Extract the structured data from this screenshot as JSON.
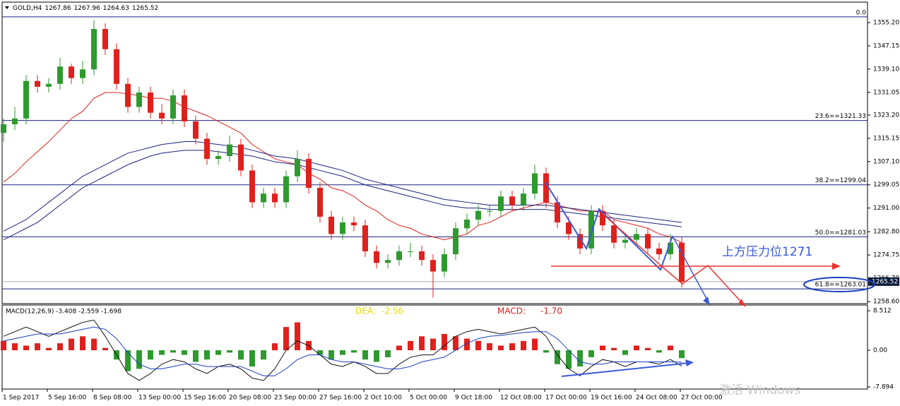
{
  "chart_data": [
    {
      "type": "candlestick",
      "title": "GOLD,H4",
      "header_ohlc": [
        1267.86,
        1267.96,
        1264.63,
        1265.52
      ],
      "categories": [
        "1 Sep 2017",
        null,
        null,
        null,
        "5 Sep 16:00",
        null,
        null,
        null,
        "8 Sep 08:00",
        null,
        null,
        null,
        "13 Sep 00:00",
        null,
        null,
        null,
        "15 Sep 16:00",
        null,
        null,
        null,
        "20 Sep 08:00",
        null,
        null,
        null,
        "23 Sep 00:00",
        null,
        null,
        null,
        "27 Sep 16:00",
        null,
        null,
        null,
        "2 Oct 10:00",
        null,
        null,
        null,
        "5 Oct 00:00",
        null,
        null,
        null,
        "9 Oct 18:00",
        null,
        null,
        null,
        "12 Oct 08:00",
        null,
        null,
        null,
        "17 Oct 00:00",
        null,
        null,
        null,
        "19 Oct 16:00",
        null,
        null,
        null,
        "24 Oct 08:00",
        null,
        null,
        null,
        "27 Oct 00:00"
      ],
      "open": [
        1317,
        1320,
        1322,
        1335,
        1333,
        1334,
        1340,
        1336,
        1339,
        1353,
        1346,
        1334,
        1326,
        1331,
        1324,
        1322,
        1330,
        1321,
        1315,
        1308,
        1309,
        1313,
        1304,
        1293,
        1296,
        1293,
        1302,
        1308,
        1298,
        1288,
        1282,
        1286,
        1285,
        1276,
        1272,
        1273,
        1276,
        1276,
        1273,
        1269,
        1275,
        1284,
        1287,
        1290,
        1290,
        1295,
        1292,
        1296,
        1303,
        1293,
        1286,
        1282,
        1277,
        1290,
        1285,
        1279,
        1280,
        1282,
        1277,
        1275,
        1279
      ],
      "high": [
        1322,
        1326,
        1337,
        1337,
        1336,
        1343,
        1341,
        1342,
        1356,
        1355,
        1348,
        1336,
        1333,
        1333,
        1327,
        1332,
        1332,
        1323,
        1317,
        1311,
        1316,
        1315,
        1306,
        1298,
        1298,
        1304,
        1311,
        1310,
        1300,
        1290,
        1288,
        1288,
        1287,
        1278,
        1275,
        1278,
        1279,
        1278,
        1275,
        1277,
        1286,
        1289,
        1292,
        1292,
        1297,
        1297,
        1298,
        1306,
        1305,
        1295,
        1288,
        1284,
        1292,
        1292,
        1287,
        1282,
        1284,
        1284,
        1279,
        1282,
        1281
      ],
      "low": [
        1314,
        1318,
        1320,
        1331,
        1331,
        1332,
        1334,
        1334,
        1337,
        1344,
        1332,
        1324,
        1324,
        1322,
        1320,
        1320,
        1319,
        1313,
        1306,
        1306,
        1307,
        1302,
        1291,
        1291,
        1291,
        1291,
        1300,
        1296,
        1286,
        1280,
        1280,
        1283,
        1274,
        1270,
        1270,
        1271,
        1274,
        1271,
        1260,
        1267,
        1273,
        1282,
        1285,
        1288,
        1288,
        1290,
        1290,
        1294,
        1291,
        1284,
        1280,
        1275,
        1275,
        1283,
        1277,
        1277,
        1278,
        1275,
        1273,
        1273,
        1263.5
      ],
      "close": [
        1320,
        1322,
        1335,
        1333,
        1334,
        1340,
        1336,
        1339,
        1353,
        1346,
        1334,
        1326,
        1331,
        1324,
        1322,
        1330,
        1321,
        1315,
        1308,
        1309,
        1313,
        1304,
        1293,
        1296,
        1293,
        1302,
        1308,
        1298,
        1288,
        1282,
        1286,
        1285,
        1276,
        1272,
        1273,
        1276,
        1276,
        1273,
        1269,
        1275,
        1284,
        1287,
        1290,
        1290,
        1295,
        1292,
        1296,
        1303,
        1293,
        1286,
        1282,
        1277,
        1290,
        1285,
        1279,
        1280,
        1282,
        1277,
        1275,
        1279,
        1265.52
      ],
      "up_color": "#2e9a2e",
      "down_color": "#e0201c",
      "lines": [
        {
          "color": "#e0201c",
          "values": [
            1300,
            1303,
            1307,
            1310.5,
            1314,
            1318,
            1322,
            1324.5,
            1329,
            1331,
            1331,
            1330.5,
            1330,
            1329,
            1329,
            1328,
            1326,
            1324.5,
            1323,
            1321,
            1319,
            1317,
            1313,
            1310.5,
            1308,
            1307,
            1306,
            1303,
            1301,
            1298,
            1297,
            1295,
            1292,
            1290,
            1287,
            1285,
            1284,
            1282,
            1281,
            1280,
            1281,
            1282,
            1285,
            1286,
            1288,
            1290,
            1291,
            1292,
            1293,
            1292,
            1291,
            1290,
            1290,
            1290,
            1287,
            1286,
            1285,
            1284,
            1282,
            1281,
            1279
          ]
        },
        {
          "color": "#1a237e",
          "values": [
            1283,
            1285,
            1287,
            1290,
            1293,
            1296,
            1299,
            1302,
            1304,
            1306,
            1308,
            1310,
            1311,
            1312,
            1313,
            1313.5,
            1314,
            1314,
            1313.5,
            1313,
            1312.5,
            1312,
            1311,
            1310,
            1309,
            1308.5,
            1308,
            1307,
            1306,
            1305,
            1304,
            1302.5,
            1301,
            1300,
            1299,
            1298,
            1297,
            1296,
            1295,
            1294,
            1293.5,
            1293,
            1292.5,
            1292,
            1292,
            1292,
            1292,
            1292,
            1292,
            1291.5,
            1291,
            1290.5,
            1290,
            1289.5,
            1289,
            1288.5,
            1288,
            1287.5,
            1287,
            1286.5,
            1286
          ]
        },
        {
          "color": "#1a237e",
          "values": [
            1280,
            1282,
            1284,
            1286,
            1289,
            1292,
            1295,
            1298,
            1300,
            1302,
            1304,
            1306,
            1307.5,
            1309,
            1310,
            1310.5,
            1311,
            1311,
            1311,
            1310.5,
            1310,
            1309.5,
            1309,
            1308,
            1307,
            1306.5,
            1306,
            1305,
            1304,
            1303,
            1302,
            1300.5,
            1299,
            1298,
            1297,
            1296,
            1295,
            1294,
            1293,
            1292,
            1291.5,
            1291,
            1291,
            1290.5,
            1290.5,
            1290.5,
            1290.5,
            1290.5,
            1290.5,
            1290,
            1289.5,
            1289,
            1288.5,
            1288,
            1287.5,
            1287,
            1286.5,
            1286,
            1285.5,
            1285,
            1284.5
          ]
        }
      ],
      "fib_levels": [
        {
          "value": 1357.2,
          "label": "0.0"
        },
        {
          "value": 1321.33,
          "label": "23.6==1321.33"
        },
        {
          "value": 1299.04,
          "label": "38.2==1299.04"
        },
        {
          "value": 1281.03,
          "label": "50.0==1281.03"
        },
        {
          "value": 1263.01,
          "label": "61.8==1263.01"
        }
      ],
      "annotation": "上方压力位1271",
      "watermark": "激活 Windows",
      "ylim": [
        1257.9,
        1362.3
      ],
      "yticks": [
        {
          "value": 1355.2,
          "label": "1355.20"
        },
        1347.15,
        {
          "value": 1339.1,
          "label": "1339.10"
        },
        1331.05,
        {
          "value": 1323.2,
          "label": "1323.20"
        },
        1315.15,
        {
          "value": 1307.1,
          "label": "1307.10"
        },
        {
          "value": 1299.05,
          "label": "1299.05"
        },
        {
          "value": 1291,
          "label": "1291.00"
        },
        {
          "value": 1282.8,
          "label": "1282.80"
        },
        1274.75,
        {
          "value": 1266.7,
          "label": "1266.70"
        },
        {
          "value": 1258.6,
          "label": "1258.60"
        }
      ]
    },
    {
      "type": "macd",
      "title": "MACD(12,26,9) -3.408 -2.559 -1.698",
      "dea_label": "DEA:",
      "dea_value": "-2.56",
      "macd_label": "MACD:",
      "macd_value": "-1.70",
      "histogram": {
        "up_color": "#e0201c",
        "down_color": "#2e9a2e",
        "values": [
          2,
          1.5,
          1,
          1.5,
          0.5,
          1.5,
          2.5,
          3,
          2.5,
          0.5,
          -2,
          -4.5,
          -4,
          -2,
          -1,
          -0.5,
          -1,
          -2.5,
          -2,
          -1,
          -0.5,
          -2,
          -3.5,
          -2,
          1.5,
          5,
          6,
          2,
          -1,
          -2,
          -1,
          -0.5,
          -2,
          -2.5,
          -1.5,
          1,
          2,
          3,
          2.5,
          3.5,
          3,
          2.5,
          2,
          1.5,
          1,
          1.5,
          2,
          2.5,
          -0.5,
          -3,
          -4,
          -3.5,
          -1.5,
          1,
          0.5,
          -1,
          1,
          0.5,
          -0.5,
          1,
          -1.698
        ]
      },
      "series": [
        {
          "color": "#111111",
          "values": [
            3,
            4,
            5,
            4,
            3,
            4,
            5,
            6,
            6.5,
            3,
            -1,
            -5,
            -6.5,
            -5,
            -3,
            -2,
            -2.5,
            -4,
            -5,
            -3.5,
            -3,
            -4,
            -6,
            -6.5,
            -4,
            0,
            2,
            1,
            -1,
            -3,
            -3.5,
            -2.5,
            -3.5,
            -5,
            -5,
            -3,
            -1.5,
            -1,
            -1,
            1,
            3,
            4,
            4.5,
            4,
            3.5,
            4,
            4.5,
            5,
            3,
            -1,
            -4,
            -5.5,
            -3.5,
            -2,
            -2.5,
            -3.5,
            -2.5,
            -2.5,
            -3,
            -2,
            -3.408
          ]
        },
        {
          "color": "#1a3fbf",
          "values": [
            2,
            2.5,
            3,
            3.5,
            3.5,
            3.5,
            4,
            4.5,
            5,
            4.5,
            2.5,
            -0.5,
            -3,
            -4,
            -4,
            -3.5,
            -3,
            -3,
            -3.5,
            -3.5,
            -3.5,
            -3.5,
            -4.5,
            -5.5,
            -5.5,
            -4,
            -2,
            -1,
            -1,
            -2,
            -2.5,
            -2.5,
            -3,
            -3.5,
            -4,
            -4,
            -3.5,
            -2.5,
            -2,
            -1.5,
            0,
            1.5,
            2.5,
            3,
            3.2,
            3.5,
            3.8,
            4,
            4,
            2.5,
            0,
            -2.5,
            -3,
            -3,
            -2.5,
            -2.5,
            -2.5,
            -2.5,
            -2.5,
            -2.5,
            -2.559
          ]
        }
      ],
      "ylim": [
        -8.35,
        9.73
      ],
      "yticks": [
        8.512,
        {
          "value": 0,
          "label": "0.00"
        },
        -7.894
      ]
    }
  ]
}
